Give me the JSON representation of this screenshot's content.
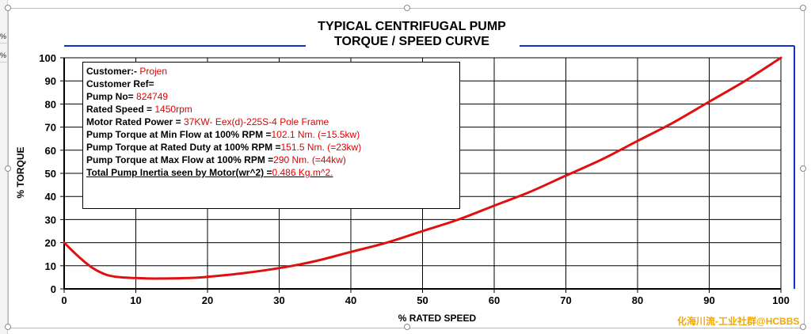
{
  "sheet": {
    "stubs": [
      "%",
      "%"
    ]
  },
  "chart_data": {
    "type": "line",
    "title": "TYPICAL CENTRIFUGAL PUMP",
    "subtitle": "TORQUE / SPEED CURVE",
    "xlabel": "% RATED SPEED",
    "ylabel": "% TORQUE",
    "xlim": [
      0,
      100
    ],
    "ylim": [
      0,
      100
    ],
    "xticks": [
      0,
      10,
      20,
      30,
      40,
      50,
      60,
      70,
      80,
      90,
      100
    ],
    "yticks": [
      0,
      10,
      20,
      30,
      40,
      50,
      60,
      70,
      80,
      90,
      100
    ],
    "grid": true,
    "series": [
      {
        "color": "#e01010",
        "x": [
          0,
          2,
          4,
          6,
          8,
          10,
          12,
          14,
          16,
          18,
          20,
          25,
          30,
          35,
          40,
          45,
          50,
          55,
          60,
          65,
          70,
          75,
          80,
          85,
          90,
          95,
          100
        ],
        "y": [
          20,
          14,
          9,
          6,
          5,
          4.7,
          4.5,
          4.5,
          4.6,
          4.8,
          5.2,
          6.8,
          9,
          12,
          16,
          20,
          25,
          30,
          36,
          42,
          49,
          56,
          64,
          72,
          81,
          90,
          100
        ]
      }
    ]
  },
  "info": {
    "customer_label": "Customer:- ",
    "customer_value": "Projen",
    "customer_ref_label": "Customer Ref=",
    "pump_no_label": "Pump No= ",
    "pump_no_value": "824749",
    "rated_speed_label": "Rated Speed = ",
    "rated_speed_value": "1450rpm",
    "motor_power_label": "Motor Rated Power = ",
    "motor_power_value": "37KW- Eex(d)-225S-4 Pole Frame",
    "min_flow_label": "Pump Torque at Min Flow at 100% RPM =",
    "min_flow_value": "102.1 Nm. (=15.5kw)",
    "rated_duty_label": "Pump Torque at Rated Duty at 100% RPM =",
    "rated_duty_value": "151.5 Nm. (=23kw)",
    "max_flow_label": "Pump Torque at Max Flow at 100% RPM =",
    "max_flow_value": "290 Nm. (=44kw)",
    "inertia_label": "Total Pump Inertia seen by Motor(wr^2) =",
    "inertia_value": "0.486 Kg.m^2."
  },
  "watermark": "化海川流-工业社群@HCBBS",
  "colors": {
    "curve": "#e01010",
    "frame_blue": "#1030d0",
    "grid": "#000000",
    "value_red": "#e00000"
  }
}
